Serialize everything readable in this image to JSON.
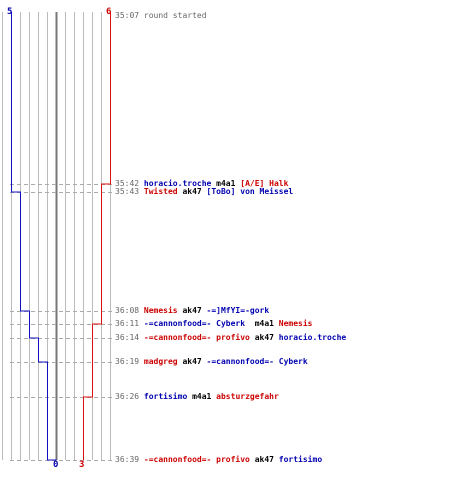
{
  "colors": {
    "blue": "#1010c0",
    "red": "#dd1111",
    "grid": "#bbbbbb",
    "center": "#777777",
    "dash": "#aaaaaa",
    "time": "#666666"
  },
  "scores": {
    "blue_start": "5",
    "red_start": "6",
    "blue_end": "0",
    "red_end": "3"
  },
  "graph": {
    "max_alive": 6,
    "blue_alive_timeline": [
      5,
      4,
      3,
      2,
      1,
      0,
      0
    ],
    "red_alive_timeline": [
      6,
      5,
      4,
      3,
      3,
      3,
      3
    ]
  },
  "log": [
    {
      "time": "35:07",
      "plain": "round started"
    },
    {
      "time": "35:42",
      "killer": "horacio.troche",
      "killer_team": "blue",
      "weapon": "m4a1",
      "victim": "[A/E] Halk",
      "victim_team": "red",
      "blue_alive": 5,
      "red_alive": 5
    },
    {
      "time": "35:43",
      "killer": "Twisted",
      "killer_team": "red",
      "weapon": "ak47",
      "victim": "[ToBo] von Meissel",
      "victim_team": "blue",
      "blue_alive": 4,
      "red_alive": 5
    },
    {
      "time": "36:08",
      "killer": "Nemesis",
      "killer_team": "red",
      "weapon": "ak47",
      "victim": "-=]MfYI=-gork",
      "victim_team": "blue",
      "blue_alive": 3,
      "red_alive": 5
    },
    {
      "time": "36:11",
      "killer": "-=cannonfood=- Cyberk",
      "killer_team": "blue",
      "weapon": " m4a1",
      "victim": "Nemesis",
      "victim_team": "red",
      "blue_alive": 3,
      "red_alive": 4
    },
    {
      "time": "36:14",
      "killer": "-=cannonfood=- profivo",
      "killer_team": "red",
      "weapon": "ak47",
      "victim": "horacio.troche",
      "victim_team": "blue",
      "blue_alive": 2,
      "red_alive": 4
    },
    {
      "time": "36:19",
      "killer": "madgreg",
      "killer_team": "red",
      "weapon": "ak47",
      "victim": "-=cannonfood=- Cyberk",
      "victim_team": "blue",
      "blue_alive": 1,
      "red_alive": 4
    },
    {
      "time": "36:26",
      "killer": "fortisimo",
      "killer_team": "blue",
      "weapon": "m4a1",
      "victim": "absturzgefahr",
      "victim_team": "red",
      "blue_alive": 1,
      "red_alive": 3
    },
    {
      "time": "36:39",
      "killer": "-=cannonfood=- profivo",
      "killer_team": "red",
      "weapon": "ak47",
      "victim": "fortisimo",
      "victim_team": "blue",
      "blue_alive": 0,
      "red_alive": 3
    }
  ]
}
